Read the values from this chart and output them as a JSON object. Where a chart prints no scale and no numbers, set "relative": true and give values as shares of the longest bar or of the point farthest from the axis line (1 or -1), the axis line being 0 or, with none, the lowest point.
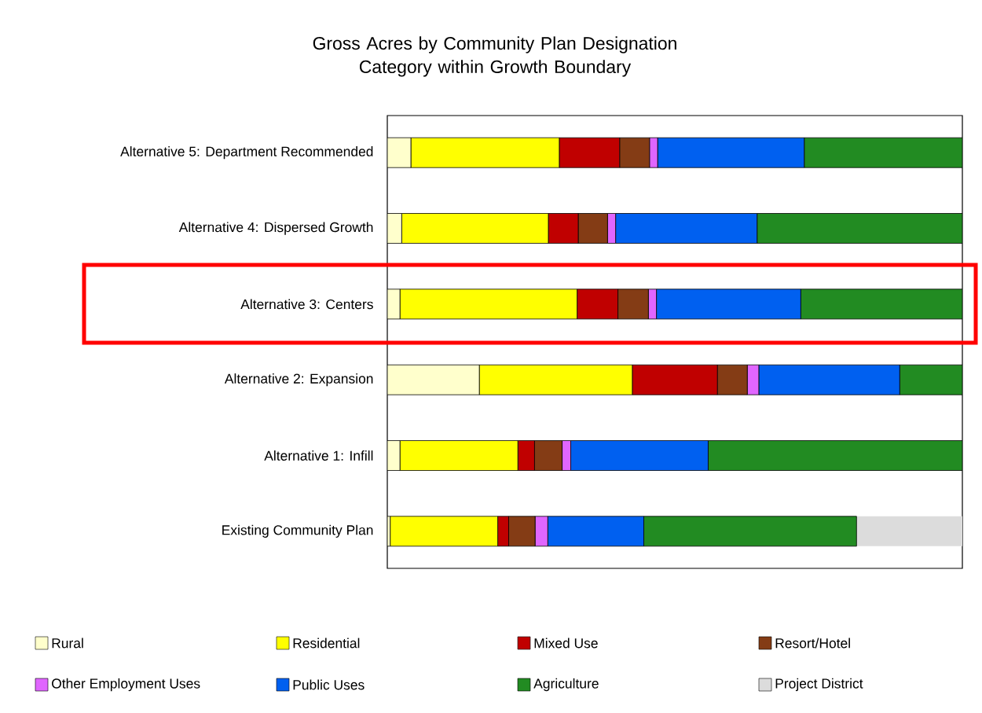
{
  "chart_data": {
    "type": "bar",
    "orientation": "horizontal",
    "stacked": true,
    "relative": true,
    "title": "Gross Acres by Community Plan Designation Category within Growth Boundary",
    "categories": [
      "Alternative 5: Department Recommended",
      "Alternative 4: Dispersed Growth",
      "Alternative 3: Centers",
      "Alternative 2: Expansion",
      "Alternative 1: Infill",
      "Existing Community Plan"
    ],
    "series": [
      {
        "name": "Rural",
        "color": "#ffffcc",
        "values": [
          0.041,
          0.025,
          0.022,
          0.16,
          0.022,
          0.005
        ]
      },
      {
        "name": "Residential",
        "color": "#ffff00",
        "values": [
          0.258,
          0.255,
          0.308,
          0.266,
          0.205,
          0.187
        ]
      },
      {
        "name": "Mixed Use",
        "color": "#c00000",
        "values": [
          0.105,
          0.052,
          0.071,
          0.148,
          0.029,
          0.019
        ]
      },
      {
        "name": "Resort/Hotel",
        "color": "#843c15",
        "values": [
          0.052,
          0.051,
          0.053,
          0.052,
          0.048,
          0.046
        ]
      },
      {
        "name": "Other Employment Uses",
        "color": "#e066ff",
        "values": [
          0.014,
          0.014,
          0.014,
          0.02,
          0.015,
          0.022
        ]
      },
      {
        "name": "Public Uses",
        "color": "#0060f0",
        "values": [
          0.255,
          0.246,
          0.251,
          0.245,
          0.239,
          0.167
        ]
      },
      {
        "name": "Agriculture",
        "color": "#228b22",
        "values": [
          0.275,
          0.357,
          0.281,
          0.109,
          0.442,
          0.37
        ]
      },
      {
        "name": "Project District",
        "color": "#dcdcdc",
        "values": [
          null,
          null,
          null,
          null,
          null,
          0.184
        ]
      }
    ],
    "legend": "bottom"
  }
}
